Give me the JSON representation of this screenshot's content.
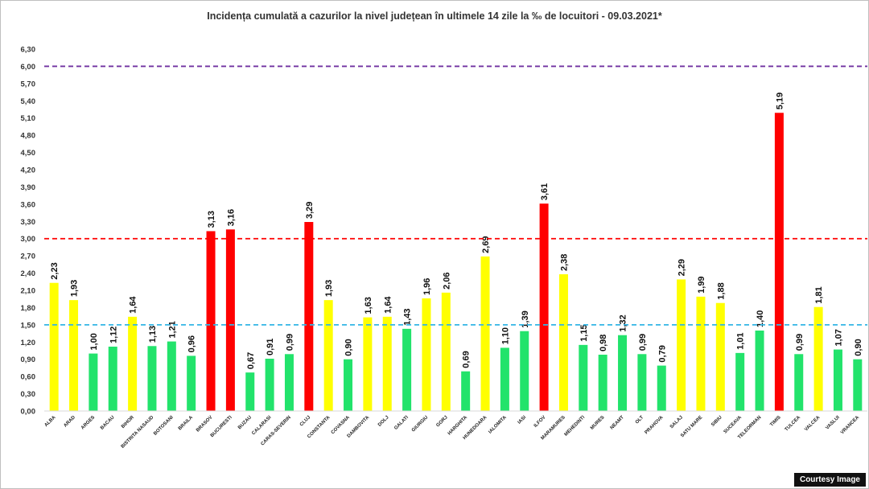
{
  "chart_data": {
    "type": "bar",
    "title": "Incidența cumulată a cazurilor la nivel județean în ultimele 14 zile la ‰ de locuitori - 09.03.2021*",
    "ylim": [
      0,
      6.3
    ],
    "yticks": [
      "0,00",
      "0,30",
      "0,60",
      "0,90",
      "1,20",
      "1,50",
      "1,80",
      "2,10",
      "2,40",
      "2,70",
      "3,00",
      "3,30",
      "3,60",
      "3,90",
      "4,20",
      "4,50",
      "4,80",
      "5,10",
      "5,40",
      "5,70",
      "6,00",
      "6,30"
    ],
    "categories": [
      "ALBA",
      "ARAD",
      "ARGES",
      "BACAU",
      "BIHOR",
      "BISTRITA NASAUD",
      "BOTOSANI",
      "BRAILA",
      "BRASOV",
      "BUCURESTI",
      "BUZAU",
      "CALARASI",
      "CARAS-SEVERIN",
      "CLUJ",
      "CONSTANTA",
      "COVASNA",
      "DAMBOVITA",
      "DOLJ",
      "GALATI",
      "GIURGIU",
      "GORJ",
      "HARGHITA",
      "HUNEDOARA",
      "IALOMITA",
      "IASI",
      "ILFOV",
      "MARAMURES",
      "MEHEDINTI",
      "MURES",
      "NEAMT",
      "OLT",
      "PRAHOVA",
      "SALAJ",
      "SATU MARE",
      "SIBIU",
      "SUCEAVA",
      "TELEORMAN",
      "TIMIS",
      "TULCEA",
      "VALCEA",
      "VASLUI",
      "VRANCEA"
    ],
    "values": [
      2.23,
      1.93,
      1.0,
      1.12,
      1.64,
      1.13,
      1.21,
      0.96,
      3.13,
      3.16,
      0.67,
      0.91,
      0.99,
      3.29,
      1.93,
      0.9,
      1.63,
      1.64,
      1.43,
      1.96,
      2.06,
      0.69,
      2.69,
      1.1,
      1.39,
      3.61,
      2.38,
      1.15,
      0.98,
      1.32,
      0.99,
      0.79,
      2.29,
      1.99,
      1.88,
      1.01,
      1.4,
      5.19,
      0.99,
      1.81,
      1.07,
      0.9
    ],
    "labels": [
      "2,23",
      "1,93",
      "1,00",
      "1,12",
      "1,64",
      "1,13",
      "1,21",
      "0,96",
      "3,13",
      "3,16",
      "0,67",
      "0,91",
      "0,99",
      "3,29",
      "1,93",
      "0,90",
      "1,63",
      "1,64",
      "1,43",
      "1,96",
      "2,06",
      "0,69",
      "2,69",
      "1,10",
      "1,39",
      "3,61",
      "2,38",
      "1,15",
      "0,98",
      "1,32",
      "0,99",
      "0,79",
      "2,29",
      "1,99",
      "1,88",
      "1,01",
      "1,40",
      "5,19",
      "0,99",
      "1,81",
      "1,07",
      "0,90"
    ],
    "thresholds": [
      {
        "value": 1.5,
        "color": "#33b5e5"
      },
      {
        "value": 3.0,
        "color": "#ff0000"
      },
      {
        "value": 6.0,
        "color": "#7030a0"
      }
    ],
    "colors": {
      "low": "#22e36b",
      "medium": "#ffff00",
      "high": "#ff0000"
    },
    "grid": false,
    "legend": "none"
  },
  "courtesy": "Courtesy Image"
}
